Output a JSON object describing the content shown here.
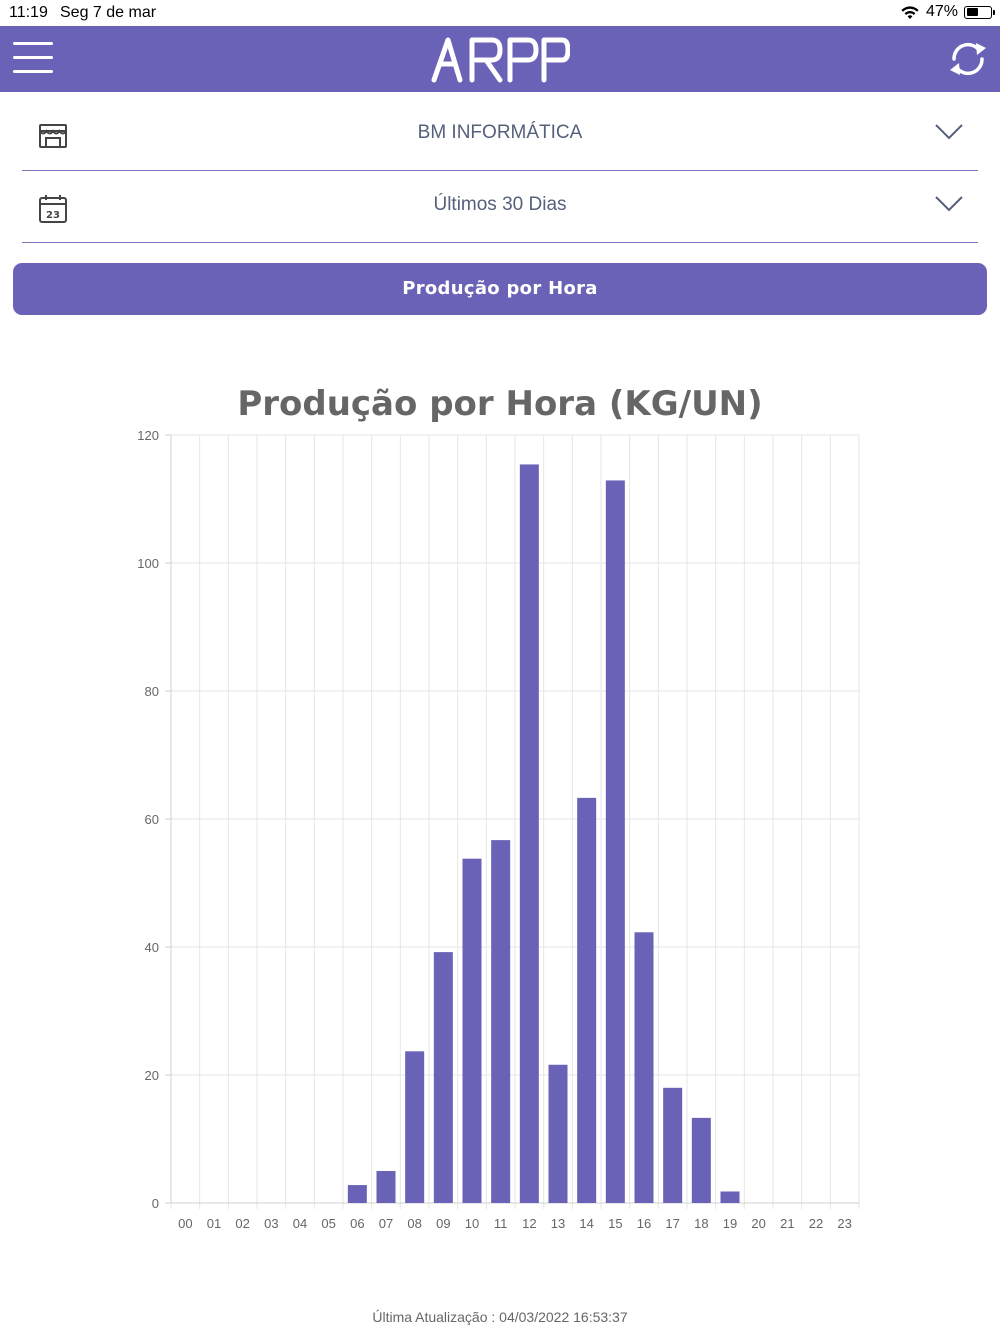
{
  "status_bar": {
    "time": "11:19",
    "date": "Seg 7 de mar",
    "battery": "47%"
  },
  "header": {
    "logo_text": "ARPP",
    "color": "#6a62b6"
  },
  "filters": {
    "store": {
      "value": "BM INFORMÁTICA",
      "icon": "store-icon"
    },
    "period": {
      "value": "Últimos 30 Dias",
      "icon": "calendar-icon",
      "icon_day": "23"
    }
  },
  "main_button": {
    "label": "Produção por Hora"
  },
  "chart_data": {
    "type": "bar",
    "title": "Produção por Hora (KG/UN)",
    "categories": [
      "00",
      "01",
      "02",
      "03",
      "04",
      "05",
      "06",
      "07",
      "08",
      "09",
      "10",
      "11",
      "12",
      "13",
      "14",
      "15",
      "16",
      "17",
      "18",
      "19",
      "20",
      "21",
      "22",
      "23"
    ],
    "values": [
      0,
      0,
      0,
      0,
      0,
      0,
      2.8,
      5,
      23.7,
      39.2,
      53.8,
      56.7,
      115.4,
      21.6,
      63.3,
      112.9,
      42.3,
      18,
      13.3,
      1.8,
      0,
      0,
      0,
      0
    ],
    "ylim": [
      0,
      120
    ],
    "yticks": [
      0,
      20,
      40,
      60,
      80,
      100,
      120
    ],
    "bar_color": "#6a62b6",
    "grid": true,
    "xlabel": "",
    "ylabel": ""
  },
  "footer": {
    "text": "Última Atualização : 04/03/2022 16:53:37"
  }
}
